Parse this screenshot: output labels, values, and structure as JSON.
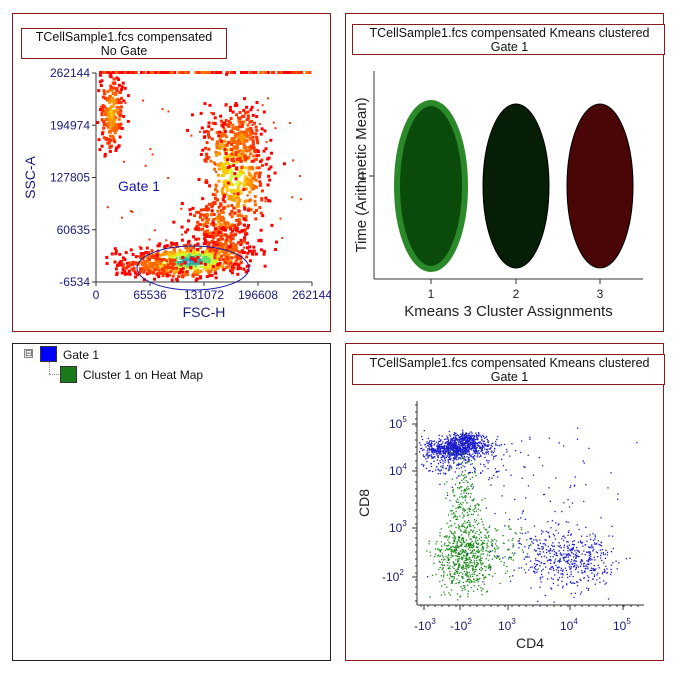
{
  "colors": {
    "panel_border": "#8b1a1a",
    "axis_text": "#1a1a7a",
    "gate": "#1a1aa0",
    "cluster1": "#0a4a0a",
    "cluster2": "#061e06",
    "cluster3": "#4a0606",
    "gate_swatch": "#0000ff",
    "cluster_swatch": "#1a7a1a"
  },
  "panel_tl": {
    "title_line1": "TCellSample1.fcs compensated",
    "title_line2": "No Gate",
    "gate_label": "Gate 1",
    "chart_data": {
      "type": "scatter",
      "subtype": "density heatmap",
      "xlabel": "FSC-H",
      "ylabel": "SSC-A",
      "x_ticks": [
        "0",
        "65536",
        "131072",
        "196608",
        "262144"
      ],
      "y_ticks": [
        "262144",
        "194974",
        "127805",
        "60635",
        "-6534"
      ],
      "xlim": [
        0,
        262144
      ],
      "ylim": [
        -6534,
        262144
      ]
    }
  },
  "panel_tr": {
    "title_line1": "TCellSample1.fcs compensated Kmeans clustered",
    "title_line2": "Gate 1",
    "chart_data": {
      "type": "heatmap",
      "xlabel": "Kmeans 3 Cluster Assignments",
      "ylabel": "Time (Arithmetic Mean)",
      "categories": [
        "1",
        "2",
        "3"
      ],
      "y_ticks": [
        "1"
      ],
      "colors": [
        "#0a4a0a",
        "#061e06",
        "#4a0606"
      ],
      "selected": "1"
    }
  },
  "panel_bl": {
    "tree": [
      {
        "label": "Gate 1",
        "color": "#0000ff",
        "expander": "⊟"
      },
      {
        "label": "Cluster 1 on Heat Map",
        "color": "#1a7a1a"
      }
    ]
  },
  "panel_br": {
    "title_line1": "TCellSample1.fcs compensated Kmeans clustered",
    "title_line2": "Gate 1",
    "chart_data": {
      "type": "scatter",
      "xlabel": "CD4",
      "ylabel": "CD8",
      "x_ticks": [
        {
          "base": "-10",
          "exp": "3"
        },
        {
          "base": "-10",
          "exp": "2"
        },
        {
          "base": "10",
          "exp": "3"
        },
        {
          "base": "10",
          "exp": "4"
        },
        {
          "base": "10",
          "exp": "5"
        }
      ],
      "y_ticks": [
        {
          "base": "10",
          "exp": "5"
        },
        {
          "base": "10",
          "exp": "4"
        },
        {
          "base": "10",
          "exp": "3"
        },
        {
          "base": "-10",
          "exp": "2"
        }
      ],
      "series": [
        {
          "color": "#1a1acc"
        },
        {
          "color": "#1a8a1a"
        }
      ]
    }
  }
}
